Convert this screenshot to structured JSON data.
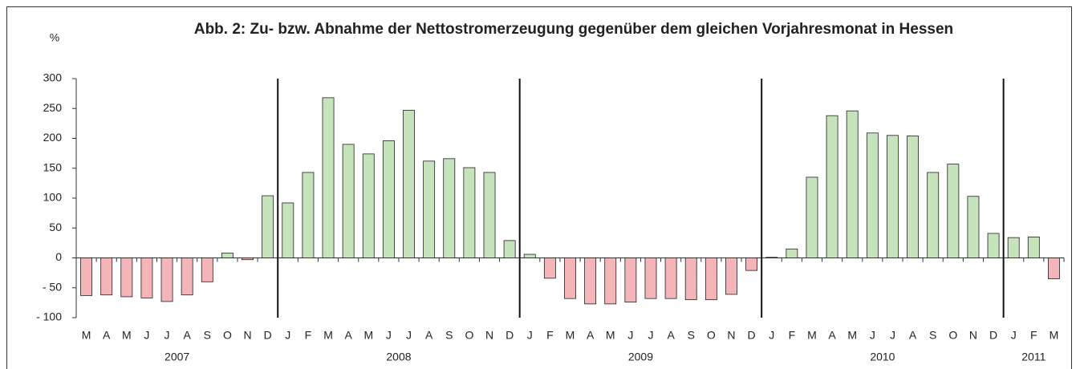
{
  "chart_data": {
    "type": "bar",
    "title": "Abb. 2: Zu- bzw. Abnahme der Nettostromerzeugung gegenüber dem gleichen Vorjahresmonat in Hessen",
    "y_label": "%",
    "categories": [
      "M",
      "A",
      "M",
      "J",
      "J",
      "A",
      "S",
      "O",
      "N",
      "D",
      "J",
      "F",
      "M",
      "A",
      "M",
      "J",
      "J",
      "A",
      "S",
      "O",
      "N",
      "D",
      "J",
      "F",
      "M",
      "A",
      "M",
      "J",
      "J",
      "A",
      "S",
      "O",
      "N",
      "D",
      "J",
      "F",
      "M",
      "A",
      "M",
      "J",
      "J",
      "A",
      "S",
      "O",
      "N",
      "D",
      "J",
      "F",
      "M"
    ],
    "values": [
      -63,
      -62,
      -65,
      -67,
      -73,
      -62,
      -40,
      8,
      -3,
      104,
      92,
      143,
      268,
      190,
      174,
      196,
      247,
      162,
      166,
      151,
      143,
      29,
      6,
      -34,
      -68,
      -77,
      -77,
      -74,
      -68,
      -68,
      -70,
      -70,
      -61,
      -21,
      1,
      15,
      135,
      238,
      246,
      209,
      205,
      204,
      143,
      157,
      103,
      41,
      34,
      35,
      -35
    ],
    "groups": [
      {
        "label": "2007",
        "count": 10
      },
      {
        "label": "2008",
        "count": 12
      },
      {
        "label": "2009",
        "count": 12
      },
      {
        "label": "2010",
        "count": 12
      },
      {
        "label": "2011",
        "count": 3
      }
    ],
    "positive_color": "#c5e4bb",
    "negative_color": "#f3b5b8",
    "ylim": [
      -100,
      300
    ],
    "yticks": [
      {
        "value": -100,
        "label": "- 100"
      },
      {
        "value": -50,
        "label": "- 50"
      },
      0,
      50,
      100,
      150,
      200,
      250,
      300
    ]
  }
}
